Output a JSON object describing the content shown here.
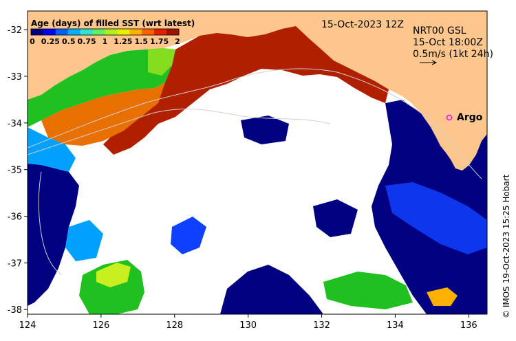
{
  "map": {
    "colorbar": {
      "title": "Age (days) of filled SST (wrt latest)",
      "ticks": [
        "0",
        "0.25",
        "0.5",
        "0.75",
        "1",
        "1.25",
        "1.5",
        "1.75",
        "2"
      ],
      "colors": [
        "#000080",
        "#0000ff",
        "#0060ff",
        "#00b0ff",
        "#30e0d0",
        "#60f060",
        "#b0f020",
        "#e8f000",
        "#ffb000",
        "#ff6000",
        "#e02000",
        "#a01000"
      ]
    },
    "date_label": "15-Oct-2023 12Z",
    "current_label": {
      "line1": "NRT00 GSL",
      "line2": "15-Oct 18:00Z",
      "line3": "0.5m/s (1kt 24h)"
    },
    "argo_label": "Argo",
    "credit": "© IMOS 19-Oct-2023 15:25 Hobart",
    "x_ticks": [
      "124",
      "126",
      "128",
      "130",
      "132",
      "134",
      "136"
    ],
    "y_ticks": [
      "-32",
      "-33",
      "-34",
      "-35",
      "-36",
      "-37",
      "-38"
    ],
    "colors": {
      "land": "#fdc68d",
      "ocean_blank": "#ffffff",
      "old": "#b02000",
      "orange": "#e87000",
      "green": "#20c020",
      "navy": "#000080",
      "blue": "#1040ff",
      "sky": "#00a0ff",
      "argo": "#ff00ff"
    }
  }
}
